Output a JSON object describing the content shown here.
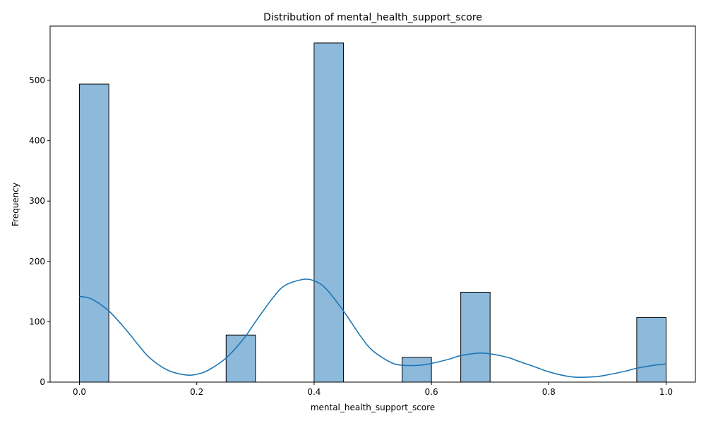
{
  "chart_data": {
    "type": "bar",
    "title": "Distribution of mental_health_support_score",
    "xlabel": "mental_health_support_score",
    "ylabel": "Frequency",
    "xlim": [
      -0.05,
      1.05
    ],
    "ylim": [
      0,
      590
    ],
    "bin_width": 0.05,
    "bins": [
      {
        "start": 0.0,
        "value": 494
      },
      {
        "start": 0.25,
        "value": 78
      },
      {
        "start": 0.4,
        "value": 562
      },
      {
        "start": 0.55,
        "value": 41
      },
      {
        "start": 0.65,
        "value": 149
      },
      {
        "start": 0.95,
        "value": 107
      }
    ],
    "kde": {
      "x": [
        0.0,
        0.02,
        0.05,
        0.08,
        0.1,
        0.12,
        0.15,
        0.18,
        0.2,
        0.22,
        0.25,
        0.28,
        0.3,
        0.33,
        0.35,
        0.38,
        0.4,
        0.42,
        0.45,
        0.48,
        0.5,
        0.53,
        0.55,
        0.58,
        0.6,
        0.63,
        0.65,
        0.68,
        0.7,
        0.73,
        0.75,
        0.78,
        0.8,
        0.83,
        0.85,
        0.88,
        0.9,
        0.93,
        0.95,
        0.98,
        1.0
      ],
      "y": [
        142,
        138,
        118,
        86,
        62,
        40,
        20,
        12,
        13,
        20,
        40,
        72,
        100,
        140,
        160,
        170,
        168,
        155,
        118,
        75,
        52,
        33,
        28,
        28,
        31,
        38,
        44,
        48,
        47,
        41,
        34,
        24,
        17,
        10,
        8,
        9,
        12,
        18,
        23,
        28,
        30
      ]
    },
    "xticks": [
      0.0,
      0.2,
      0.4,
      0.6,
      0.8,
      1.0
    ],
    "xtick_labels": [
      "0.0",
      "0.2",
      "0.4",
      "0.6",
      "0.8",
      "1.0"
    ],
    "yticks": [
      0,
      100,
      200,
      300,
      400,
      500
    ],
    "ytick_labels": [
      "0",
      "100",
      "200",
      "300",
      "400",
      "500"
    ],
    "grid": false,
    "colors": {
      "bar_fill": "#8db9db",
      "bar_edge": "#000000",
      "kde_line": "#1f77b4"
    }
  }
}
